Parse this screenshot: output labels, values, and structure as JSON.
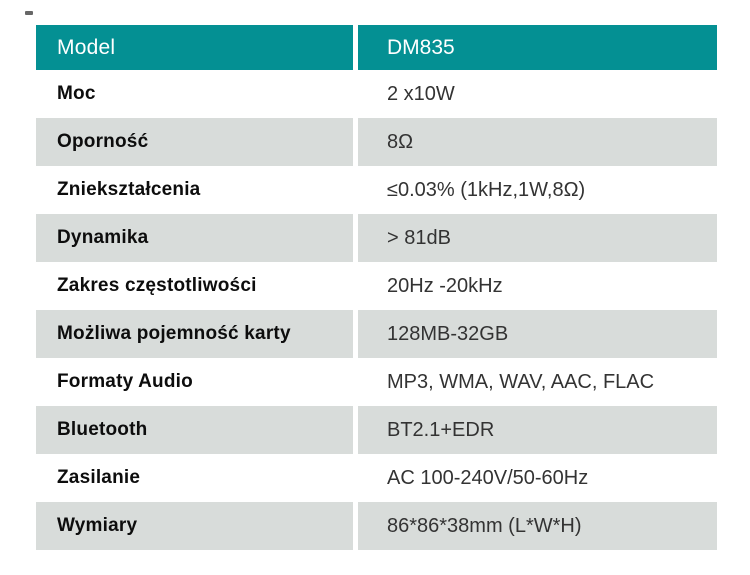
{
  "table": {
    "header": {
      "label": "Model",
      "value": "DM835"
    },
    "rows": [
      {
        "label": "Moc",
        "value": "2 x10W"
      },
      {
        "label": "Oporność",
        "value": "8Ω"
      },
      {
        "label": "Zniekształcenia",
        "value": "≤0.03% (1kHz,1W,8Ω)"
      },
      {
        "label": "Dynamika",
        "value": "> 81dB"
      },
      {
        "label": "Zakres częstotliwości",
        "value": "20Hz -20kHz"
      },
      {
        "label": "Możliwa pojemność karty",
        "value": "128MB-32GB"
      },
      {
        "label": "Formaty Audio",
        "value": "MP3, WMA, WAV, AAC, FLAC"
      },
      {
        "label": "Bluetooth",
        "value": "BT2.1+EDR"
      },
      {
        "label": "Zasilanie",
        "value": "AC 100-240V/50-60Hz"
      },
      {
        "label": "Wymiary",
        "value": "86*86*38mm (L*W*H)"
      }
    ],
    "colors": {
      "header_bg": "#049093",
      "header_text": "#ffffff",
      "row_alt_bg": "#d8dcda",
      "row_bg": "#ffffff",
      "label_text": "#0d0d0d",
      "value_text": "#333333"
    }
  }
}
